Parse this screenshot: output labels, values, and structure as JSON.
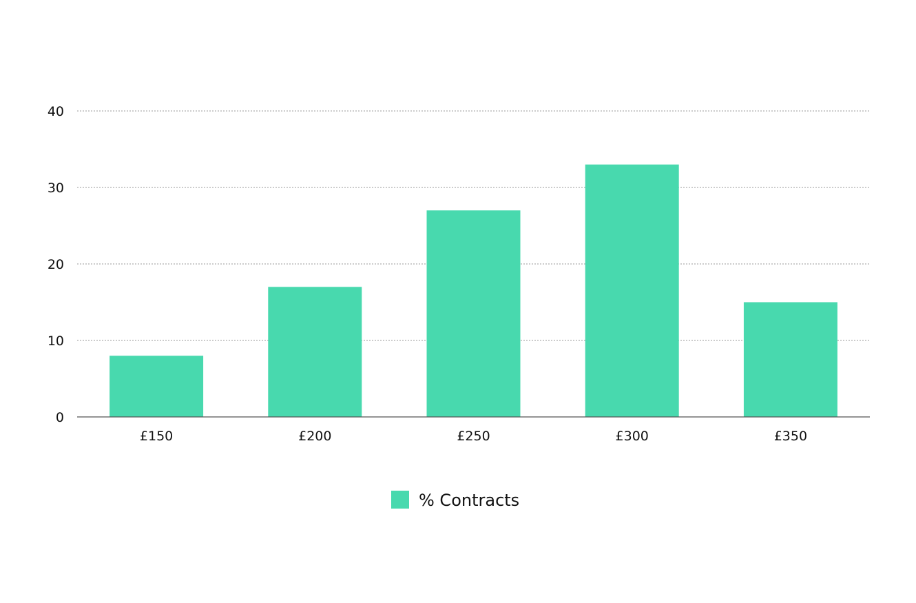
{
  "chart_data": {
    "type": "bar",
    "categories": [
      "£150",
      "£200",
      "£250",
      "£300",
      "£350"
    ],
    "series": [
      {
        "name": "% Contracts",
        "values": [
          8,
          17,
          27,
          33,
          15
        ],
        "color": "#48d9ae"
      }
    ],
    "ylim": [
      0,
      40
    ],
    "yticks": [
      0,
      10,
      20,
      30,
      40
    ],
    "grid": true,
    "legend_position": "bottom-center"
  }
}
